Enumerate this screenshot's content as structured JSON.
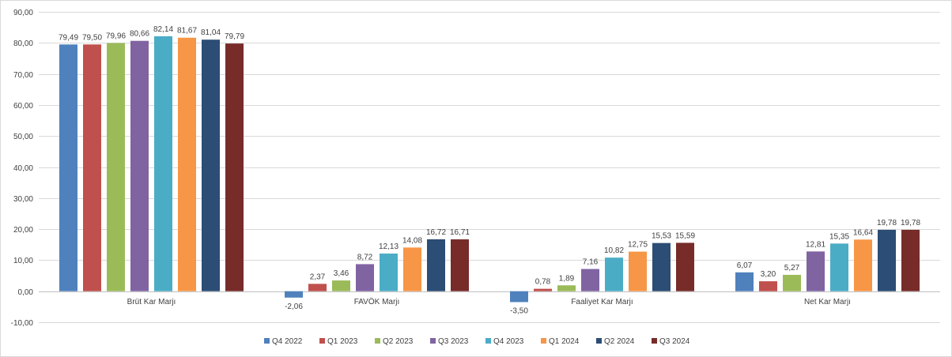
{
  "chart_data": {
    "type": "bar",
    "title": "",
    "xlabel": "",
    "ylabel": "",
    "ylim": [
      -10,
      90
    ],
    "yticks": [
      -10,
      0,
      10,
      20,
      30,
      40,
      50,
      60,
      70,
      80,
      90
    ],
    "ytick_labels": [
      "-10,00",
      "0,00",
      "10,00",
      "20,00",
      "30,00",
      "40,00",
      "50,00",
      "60,00",
      "70,00",
      "80,00",
      "90,00"
    ],
    "grid": true,
    "legend": "bottom",
    "categories": [
      "Brüt Kar Marjı",
      "FAVÖK Marjı",
      "Faaliyet Kar Marjı",
      "Net Kar Marjı"
    ],
    "series": [
      {
        "name": "Q4 2022",
        "color": "#4F81BD",
        "values": [
          79.49,
          -2.06,
          -3.5,
          6.07
        ],
        "labels": [
          "79,49",
          "-2,06",
          "-3,50",
          "6,07"
        ]
      },
      {
        "name": "Q1 2023",
        "color": "#C0504D",
        "values": [
          79.5,
          2.37,
          0.78,
          3.2
        ],
        "labels": [
          "79,50",
          "2,37",
          "0,78",
          "3,20"
        ]
      },
      {
        "name": "Q2 2023",
        "color": "#9BBB59",
        "values": [
          79.96,
          3.46,
          1.89,
          5.27
        ],
        "labels": [
          "79,96",
          "3,46",
          "1,89",
          "5,27"
        ]
      },
      {
        "name": "Q3 2023",
        "color": "#8064A2",
        "values": [
          80.66,
          8.72,
          7.16,
          12.81
        ],
        "labels": [
          "80,66",
          "8,72",
          "7,16",
          "12,81"
        ]
      },
      {
        "name": "Q4 2023",
        "color": "#4BACC6",
        "values": [
          82.14,
          12.13,
          10.82,
          15.35
        ],
        "labels": [
          "82,14",
          "12,13",
          "10,82",
          "15,35"
        ]
      },
      {
        "name": "Q1 2024",
        "color": "#F79646",
        "values": [
          81.67,
          14.08,
          12.75,
          16.64
        ],
        "labels": [
          "81,67",
          "14,08",
          "12,75",
          "16,64"
        ]
      },
      {
        "name": "Q2 2024",
        "color": "#2C4D75",
        "values": [
          81.04,
          16.72,
          15.53,
          19.78
        ],
        "labels": [
          "81,04",
          "16,72",
          "15,53",
          "19,78"
        ]
      },
      {
        "name": "Q3 2024",
        "color": "#772C2A",
        "values": [
          79.79,
          16.71,
          15.59,
          19.78
        ],
        "labels": [
          "79,79",
          "16,71",
          "15,59",
          "19,78"
        ]
      }
    ]
  }
}
